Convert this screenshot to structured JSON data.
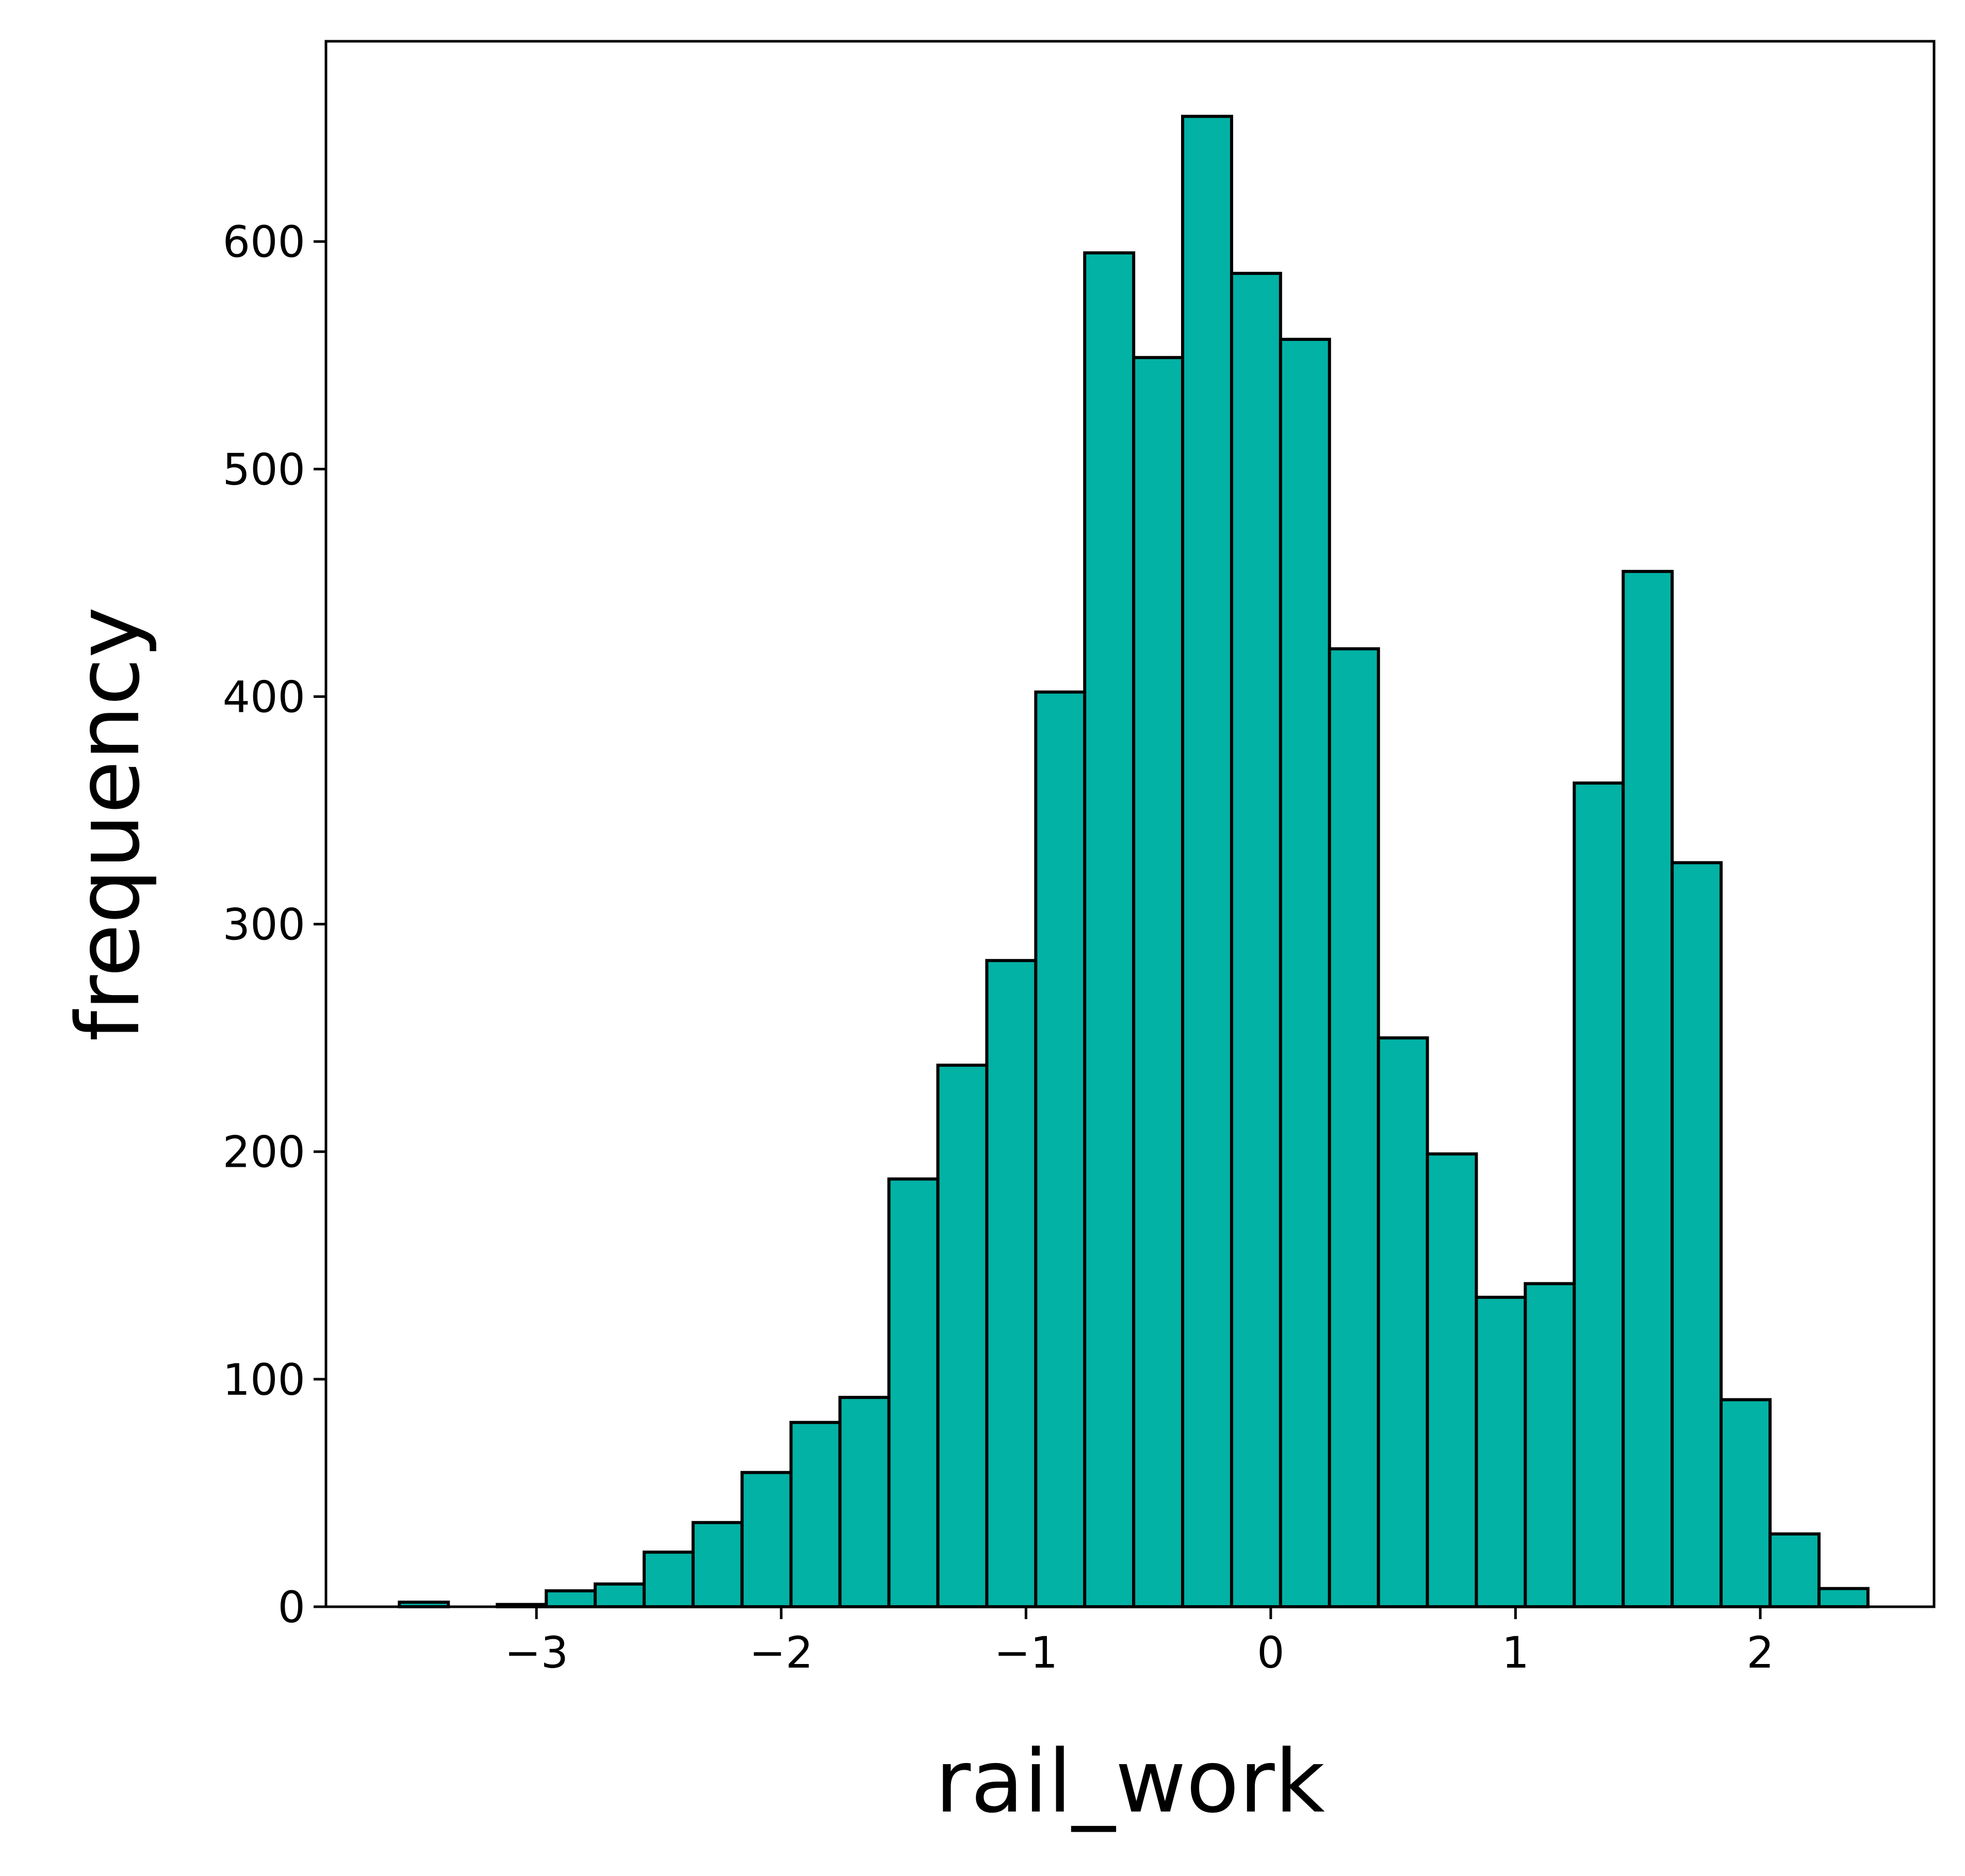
{
  "chart_data": {
    "type": "bar",
    "subtype": "histogram",
    "xlabel": "rail_work",
    "ylabel": "frequency",
    "xlim": [
      -3.86,
      2.71
    ],
    "ylim": [
      0,
      688
    ],
    "x_ticks": [
      -3,
      -2,
      -1,
      0,
      1,
      2
    ],
    "x_tick_labels": [
      "−3",
      "−2",
      "−1",
      "0",
      "1",
      "2"
    ],
    "y_ticks": [
      0,
      100,
      200,
      300,
      400,
      500,
      600
    ],
    "y_tick_labels": [
      "0",
      "100",
      "200",
      "300",
      "400",
      "500",
      "600"
    ],
    "bin_edges": [
      -3.56,
      -3.36,
      -3.16,
      -2.96,
      -2.76,
      -2.56,
      -2.36,
      -2.16,
      -1.96,
      -1.76,
      -1.56,
      -1.36,
      -1.16,
      -0.96,
      -0.76,
      -0.56,
      -0.36,
      -0.16,
      0.04,
      0.24,
      0.44,
      0.64,
      0.84,
      1.04,
      1.24,
      1.44,
      1.64,
      1.84,
      2.04,
      2.24,
      2.44
    ],
    "values": [
      2,
      0,
      1,
      7,
      10,
      24,
      37,
      59,
      81,
      92,
      188,
      238,
      284,
      402,
      595,
      549,
      655,
      586,
      557,
      421,
      250,
      199,
      136,
      142,
      362,
      455,
      327,
      91,
      32,
      8
    ],
    "bar_color": "#02b2a5",
    "edge_color": "#000000",
    "grid": false,
    "legend": "none"
  }
}
